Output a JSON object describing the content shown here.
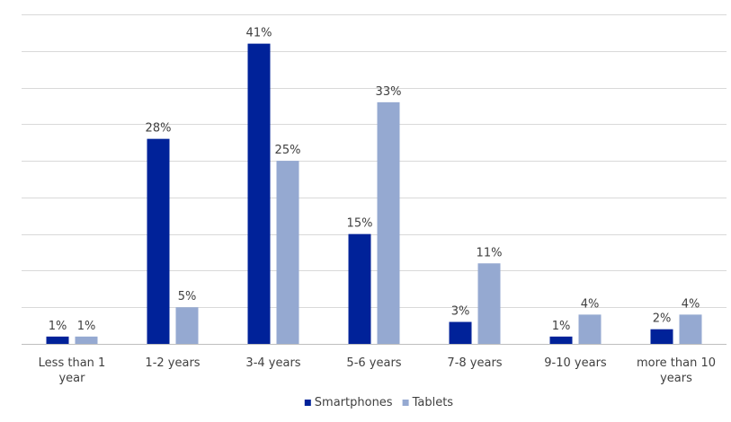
{
  "chart_data": {
    "type": "bar",
    "categories": [
      "Less than 1 year",
      "1-2 years",
      "3-4 years",
      "5-6 years",
      "7-8 years",
      "9-10 years",
      "more than 10 years"
    ],
    "category_lines": [
      [
        "Less than 1",
        "year"
      ],
      [
        "1-2 years"
      ],
      [
        "3-4 years"
      ],
      [
        "5-6 years"
      ],
      [
        "7-8 years"
      ],
      [
        "9-10 years"
      ],
      [
        "more than 10",
        "years"
      ]
    ],
    "series": [
      {
        "name": "Smartphones",
        "color": "#002299",
        "values": [
          1,
          28,
          41,
          15,
          3,
          1,
          2
        ],
        "labels": [
          "1%",
          "28%",
          "41%",
          "15%",
          "3%",
          "1%",
          "2%"
        ]
      },
      {
        "name": "Tablets",
        "color": "#95a9d1",
        "values": [
          1,
          5,
          25,
          33,
          11,
          4,
          4
        ],
        "labels": [
          "1%",
          "5%",
          "25%",
          "33%",
          "11%",
          "4%",
          "4%"
        ]
      }
    ],
    "ylim": [
      0,
      45
    ],
    "grid": true,
    "legend": "bottom-center",
    "title": "",
    "xlabel": "",
    "ylabel": ""
  }
}
